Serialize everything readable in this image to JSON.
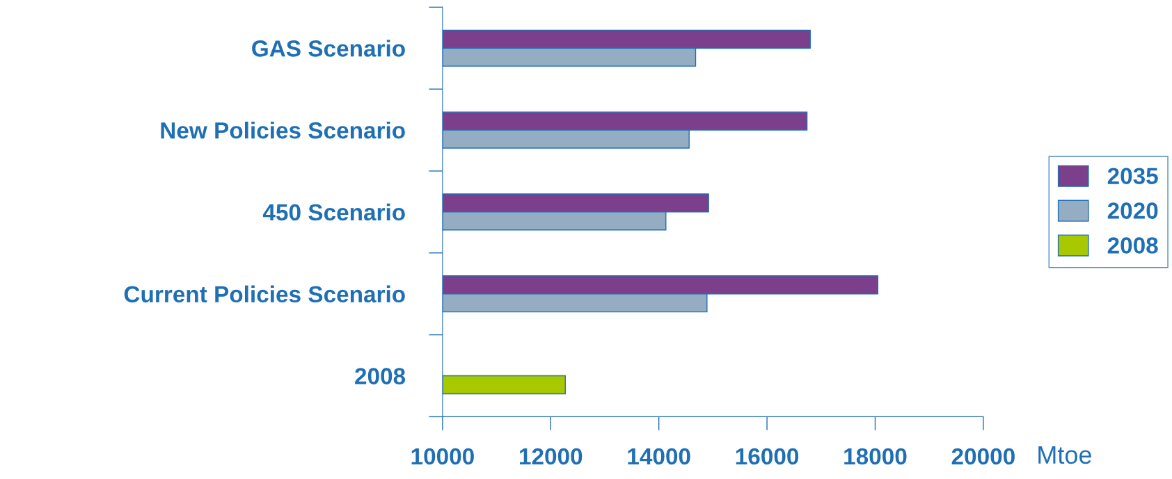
{
  "chart_data": {
    "type": "bar",
    "orientation": "horizontal",
    "xlabel": "Mtoe",
    "categories": [
      "GAS Scenario",
      "New Policies Scenario",
      "450 Scenario",
      "Current Policies Scenario",
      "2008"
    ],
    "series": [
      {
        "name": "2035",
        "color": "#7b3f8c",
        "values": [
          16800,
          16740,
          14920,
          18050,
          null
        ]
      },
      {
        "name": "2020",
        "color": "#94adc2",
        "values": [
          14680,
          14560,
          14130,
          14890,
          null
        ]
      },
      {
        "name": "2008",
        "color": "#a8c800",
        "values": [
          null,
          null,
          null,
          null,
          12270
        ]
      }
    ],
    "xlim": [
      10000,
      20000
    ],
    "xticks": [
      10000,
      12000,
      14000,
      16000,
      18000,
      20000
    ],
    "grid": false,
    "legend": "right"
  }
}
